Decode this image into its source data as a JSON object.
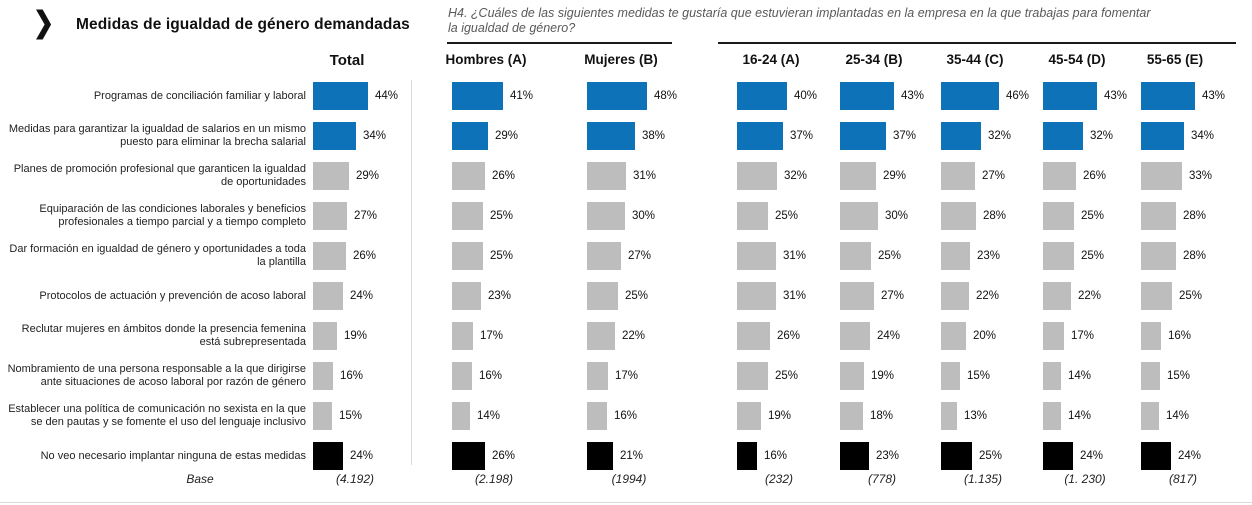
{
  "header": {
    "chevron_icon": "❯",
    "title": "Medidas de igualdad de género demandadas",
    "question": "H4. ¿Cuáles de las siguientes medidas te gustaría que estuvieran implantadas en la empresa en la que trabajas para fomentar la igualdad de género?"
  },
  "chart_data": {
    "type": "bar",
    "orientation": "horizontal",
    "unit": "%",
    "grid": false,
    "legend": "none",
    "xlim": [
      0,
      60
    ],
    "bar_colors": {
      "highlight": "#0e72b9",
      "normal": "#bdbdbd",
      "negative": "#000000"
    },
    "columns": [
      {
        "label": "Total",
        "base": "(4.192)"
      },
      {
        "label": "Hombres (A)",
        "base": "(2.198)"
      },
      {
        "label": "Mujeres (B)",
        "base": "(1994)"
      },
      {
        "label": "16-24 (A)",
        "base": "(232)"
      },
      {
        "label": "25-34 (B)",
        "base": "(778)"
      },
      {
        "label": "35-44 (C)",
        "base": "(1.135)"
      },
      {
        "label": "45-54 (D)",
        "base": "(1. 230)"
      },
      {
        "label": "55-65 (E)",
        "base": "(817)"
      }
    ],
    "rows": [
      {
        "label": "Programas de conciliación familiar y laboral",
        "style": "highlight",
        "values": [
          44,
          41,
          48,
          40,
          43,
          46,
          43,
          43
        ]
      },
      {
        "label": "Medidas para garantizar la igualdad de salarios en un mismo puesto para eliminar la brecha salarial",
        "style": "highlight",
        "values": [
          34,
          29,
          38,
          37,
          37,
          32,
          32,
          34
        ]
      },
      {
        "label": "Planes de promoción profesional que garanticen la igualdad de oportunidades",
        "style": "normal",
        "values": [
          29,
          26,
          31,
          32,
          29,
          27,
          26,
          33
        ]
      },
      {
        "label": "Equiparación de las condiciones laborales y beneficios profesionales a tiempo parcial y a tiempo completo",
        "style": "normal",
        "values": [
          27,
          25,
          30,
          25,
          30,
          28,
          25,
          28
        ]
      },
      {
        "label": "Dar formación en igualdad de género y oportunidades a toda la plantilla",
        "style": "normal",
        "values": [
          26,
          25,
          27,
          31,
          25,
          23,
          25,
          28
        ]
      },
      {
        "label": "Protocolos de actuación y prevención de acoso laboral",
        "style": "normal",
        "values": [
          24,
          23,
          25,
          31,
          27,
          22,
          22,
          25
        ]
      },
      {
        "label": "Reclutar mujeres en ámbitos donde la presencia femenina está subrepresentada",
        "style": "normal",
        "values": [
          19,
          17,
          22,
          26,
          24,
          20,
          17,
          16
        ]
      },
      {
        "label": "Nombramiento de una persona responsable a la que dirigirse ante situaciones de acoso laboral por razón de género",
        "style": "normal",
        "values": [
          16,
          16,
          17,
          25,
          19,
          15,
          14,
          15
        ]
      },
      {
        "label": "Establecer una política de comunicación no sexista en la que se den pautas y se fomente el uso del lenguaje inclusivo",
        "style": "normal",
        "values": [
          15,
          14,
          16,
          19,
          18,
          13,
          14,
          14
        ]
      },
      {
        "label": "No veo necesario implantar ninguna de estas medidas",
        "style": "negative",
        "values": [
          24,
          26,
          21,
          16,
          23,
          25,
          24,
          24
        ]
      }
    ],
    "base_label": "Base"
  }
}
